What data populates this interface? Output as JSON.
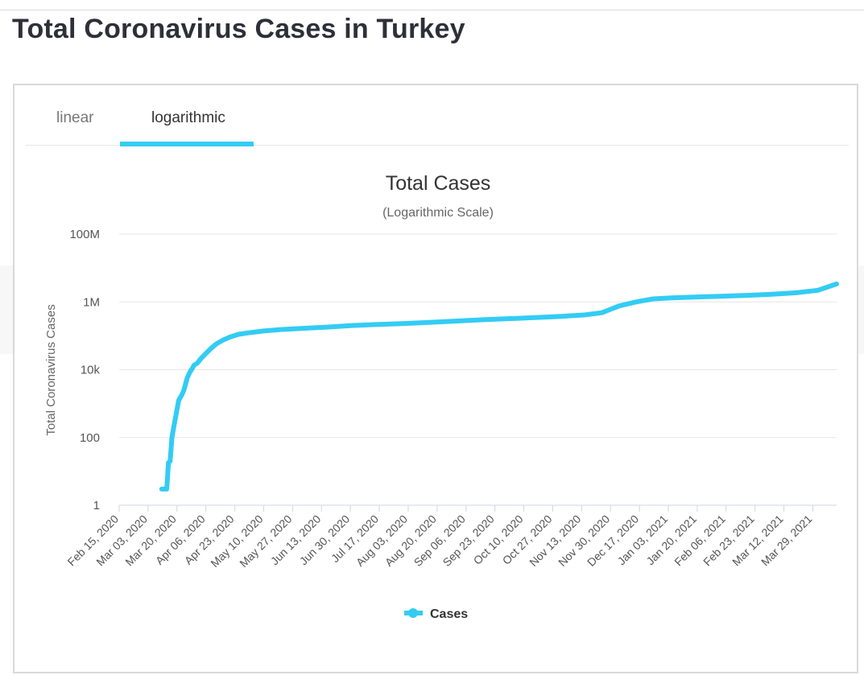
{
  "page_title": "Total Coronavirus Cases in Turkey",
  "tabs": [
    {
      "label": "linear",
      "active": false
    },
    {
      "label": "logarithmic",
      "active": true
    }
  ],
  "colors": {
    "series": "#33ccf4",
    "accent": "#33ccf4",
    "text": "#333333",
    "grid": "#e6e6e6"
  },
  "chart_data": {
    "type": "line",
    "title": "Total Cases",
    "subtitle": "(Logarithmic Scale)",
    "ylabel": "Total Coronavirus Cases",
    "xlabel": "",
    "yscale": "log",
    "ylim": [
      1,
      100000000
    ],
    "xlim": [
      "2020-02-15",
      "2021-04-12"
    ],
    "ytick_labels": [
      "1",
      "100",
      "10k",
      "1M",
      "100M"
    ],
    "ytick_values": [
      1,
      100,
      10000,
      1000000,
      100000000
    ],
    "xtick_labels": [
      "Feb 15, 2020",
      "Mar 03, 2020",
      "Mar 20, 2020",
      "Apr 06, 2020",
      "Apr 23, 2020",
      "May 10, 2020",
      "May 27, 2020",
      "Jun 13, 2020",
      "Jun 30, 2020",
      "Jul 17, 2020",
      "Aug 03, 2020",
      "Aug 20, 2020",
      "Sep 06, 2020",
      "Sep 23, 2020",
      "Oct 10, 2020",
      "Oct 27, 2020",
      "Nov 13, 2020",
      "Nov 30, 2020",
      "Dec 17, 2020",
      "Jan 03, 2021",
      "Jan 20, 2021",
      "Feb 06, 2021",
      "Feb 23, 2021",
      "Mar 12, 2021",
      "Mar 29, 2021"
    ],
    "legend": "bottom-center",
    "grid": true,
    "series": [
      {
        "name": "Cases",
        "x": [
          "2020-03-11",
          "2020-03-12",
          "2020-03-13",
          "2020-03-14",
          "2020-03-15",
          "2020-03-16",
          "2020-03-17",
          "2020-03-18",
          "2020-03-19",
          "2020-03-20",
          "2020-03-21",
          "2020-03-22",
          "2020-03-23",
          "2020-03-24",
          "2020-03-25",
          "2020-03-26",
          "2020-03-27",
          "2020-03-28",
          "2020-03-29",
          "2020-03-30",
          "2020-04-01",
          "2020-04-03",
          "2020-04-06",
          "2020-04-09",
          "2020-04-12",
          "2020-04-16",
          "2020-04-20",
          "2020-04-25",
          "2020-05-01",
          "2020-05-10",
          "2020-05-20",
          "2020-06-01",
          "2020-06-15",
          "2020-07-01",
          "2020-07-15",
          "2020-08-01",
          "2020-08-15",
          "2020-09-01",
          "2020-09-15",
          "2020-10-01",
          "2020-10-15",
          "2020-11-01",
          "2020-11-15",
          "2020-11-25",
          "2020-12-05",
          "2020-12-15",
          "2020-12-25",
          "2021-01-05",
          "2021-01-20",
          "2021-02-05",
          "2021-02-20",
          "2021-03-05",
          "2021-03-20",
          "2021-04-01",
          "2021-04-12"
        ],
        "values": [
          3,
          3,
          3,
          3,
          18,
          20,
          100,
          191,
          359,
          670,
          1236,
          1529,
          1872,
          2433,
          3629,
          5698,
          7402,
          9217,
          10827,
          13531,
          15679,
          20921,
          30217,
          42282,
          56956,
          74193,
          90980,
          110130,
          122392,
          138657,
          152587,
          164769,
          178239,
          201098,
          214993,
          230873,
          247500,
          273301,
          296391,
          320070,
          341550,
          375367,
          414000,
          480000,
          760000,
          1000000,
          1230000,
          1317000,
          1400000,
          1480000,
          1570000,
          1690000,
          1880000,
          2200000,
          3400000
        ]
      }
    ]
  }
}
